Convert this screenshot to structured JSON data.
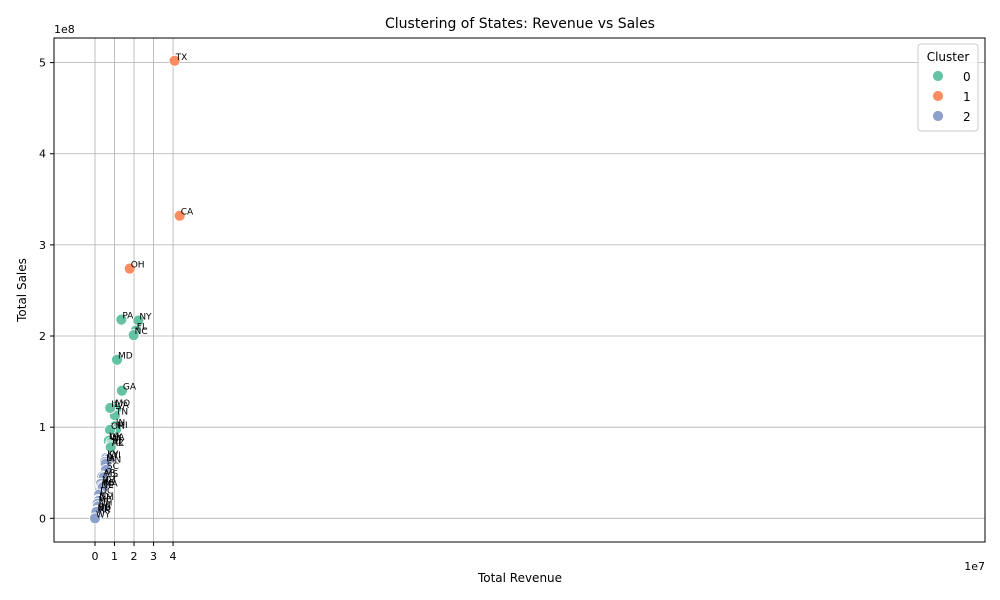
{
  "chart_data": {
    "type": "scatter",
    "title": "Clustering of States: Revenue vs Sales",
    "xlabel": "Total Revenue",
    "ylabel": "Total Sales",
    "x_offset_label": "1e7",
    "y_offset_label": "1e8",
    "xlim": [
      -2.1,
      45.6
    ],
    "ylim": [
      -0.26,
      5.27
    ],
    "x_ticks": [
      0,
      1,
      2,
      3,
      4
    ],
    "y_ticks": [
      0,
      1,
      2,
      3,
      4,
      5
    ],
    "grid": true,
    "legend": {
      "title": "Cluster",
      "placement": "top-right",
      "entries": [
        {
          "label": "0",
          "cluster": 0
        },
        {
          "label": "1",
          "cluster": 1
        },
        {
          "label": "2",
          "cluster": 2
        }
      ]
    },
    "cluster_colors": [
      "#66c2a5",
      "#fc8d62",
      "#8da0cb"
    ],
    "points": [
      {
        "label": "TX",
        "x": 4.08,
        "y": 5.02,
        "cluster": 1
      },
      {
        "label": "CA",
        "x": 4.34,
        "y": 3.32,
        "cluster": 1
      },
      {
        "label": "OH",
        "x": 1.78,
        "y": 2.74,
        "cluster": 1
      },
      {
        "label": "NY",
        "x": 2.22,
        "y": 2.17,
        "cluster": 0
      },
      {
        "label": "FL",
        "x": 2.09,
        "y": 2.06,
        "cluster": 0
      },
      {
        "label": "NC",
        "x": 1.98,
        "y": 2.01,
        "cluster": 0
      },
      {
        "label": "PA",
        "x": 1.35,
        "y": 2.18,
        "cluster": 0
      },
      {
        "label": "MD",
        "x": 1.13,
        "y": 1.74,
        "cluster": 0
      },
      {
        "label": "GA",
        "x": 1.38,
        "y": 1.4,
        "cluster": 0
      },
      {
        "label": "MO",
        "x": 0.99,
        "y": 1.22,
        "cluster": 0
      },
      {
        "label": "VA",
        "x": 1.08,
        "y": 1.2,
        "cluster": 0
      },
      {
        "label": "TN",
        "x": 1.02,
        "y": 1.13,
        "cluster": 0
      },
      {
        "label": "IN",
        "x": 1.02,
        "y": 1.01,
        "cluster": 0
      },
      {
        "label": "MI",
        "x": 1.09,
        "y": 0.98,
        "cluster": 0
      },
      {
        "label": "IL",
        "x": 0.78,
        "y": 1.21,
        "cluster": 0
      },
      {
        "label": "OR",
        "x": 0.77,
        "y": 0.97,
        "cluster": 0
      },
      {
        "label": "LA",
        "x": 0.66,
        "y": 0.86,
        "cluster": 0
      },
      {
        "label": "OK",
        "x": 0.68,
        "y": 0.85,
        "cluster": 0
      },
      {
        "label": "WA",
        "x": 0.71,
        "y": 0.85,
        "cluster": 0
      },
      {
        "label": "NJ",
        "x": 0.83,
        "y": 0.83,
        "cluster": 0
      },
      {
        "label": "AL",
        "x": 0.82,
        "y": 0.8,
        "cluster": 0
      },
      {
        "label": "AZ",
        "x": 0.81,
        "y": 0.78,
        "cluster": 0
      },
      {
        "label": "KY",
        "x": 0.58,
        "y": 0.66,
        "cluster": 2
      },
      {
        "label": "WI",
        "x": 0.68,
        "y": 0.65,
        "cluster": 2
      },
      {
        "label": "IA",
        "x": 0.52,
        "y": 0.62,
        "cluster": 2
      },
      {
        "label": "MN",
        "x": 0.55,
        "y": 0.6,
        "cluster": 2
      },
      {
        "label": "SC",
        "x": 0.56,
        "y": 0.53,
        "cluster": 2
      },
      {
        "label": "AR",
        "x": 0.38,
        "y": 0.46,
        "cluster": 2
      },
      {
        "label": "MS",
        "x": 0.45,
        "y": 0.45,
        "cluster": 2
      },
      {
        "label": "CT",
        "x": 0.49,
        "y": 0.38,
        "cluster": 2
      },
      {
        "label": "NV",
        "x": 0.31,
        "y": 0.38,
        "cluster": 2
      },
      {
        "label": "NE",
        "x": 0.27,
        "y": 0.32,
        "cluster": 2
      },
      {
        "label": "KS",
        "x": 0.35,
        "y": 0.35,
        "cluster": 2
      },
      {
        "label": "MA",
        "x": 0.4,
        "y": 0.34,
        "cluster": 2
      },
      {
        "label": "DC",
        "x": 0.21,
        "y": 0.26,
        "cluster": 2
      },
      {
        "label": "ID",
        "x": 0.16,
        "y": 0.2,
        "cluster": 2
      },
      {
        "label": "NM",
        "x": 0.18,
        "y": 0.19,
        "cluster": 2
      },
      {
        "label": "ME",
        "x": 0.13,
        "y": 0.16,
        "cluster": 2
      },
      {
        "label": "NH",
        "x": 0.15,
        "y": 0.13,
        "cluster": 2
      },
      {
        "label": "HI",
        "x": 0.26,
        "y": 0.09,
        "cluster": 2
      },
      {
        "label": "DE",
        "x": 0.1,
        "y": 0.08,
        "cluster": 2
      },
      {
        "label": "AK",
        "x": 0.11,
        "y": 0.05,
        "cluster": 2
      },
      {
        "label": "ND",
        "x": 0.07,
        "y": 0.07,
        "cluster": 2
      },
      {
        "label": "WY",
        "x": 0.0,
        "y": 0.0,
        "cluster": 2
      }
    ]
  }
}
